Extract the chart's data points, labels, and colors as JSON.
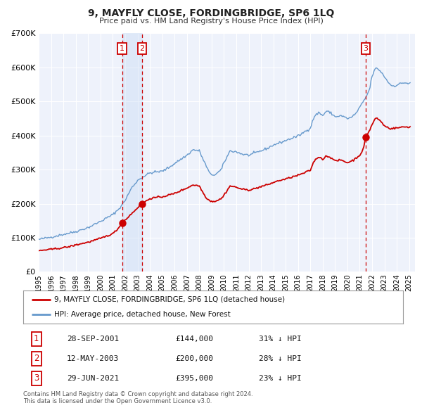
{
  "title": "9, MAYFLY CLOSE, FORDINGBRIDGE, SP6 1LQ",
  "subtitle": "Price paid vs. HM Land Registry's House Price Index (HPI)",
  "background_color": "#ffffff",
  "plot_background_color": "#eef2fb",
  "grid_color": "#ffffff",
  "ylim": [
    0,
    700000
  ],
  "yticks": [
    0,
    100000,
    200000,
    300000,
    400000,
    500000,
    600000,
    700000
  ],
  "ytick_labels": [
    "£0",
    "£100K",
    "£200K",
    "£300K",
    "£400K",
    "£500K",
    "£600K",
    "£700K"
  ],
  "sale_dates": [
    2001.747,
    2003.36,
    2021.494
  ],
  "sale_prices": [
    144000,
    200000,
    395000
  ],
  "sale_labels": [
    "1",
    "2",
    "3"
  ],
  "sale_marker_color": "#cc0000",
  "sale_line_color": "#cc0000",
  "hpi_line_color": "#6699cc",
  "hpi_shade_color": "#ccddf5",
  "vline_color": "#cc0000",
  "vline_style": "--",
  "shade_between_dates": [
    2001.747,
    2003.36
  ],
  "legend_entries": [
    "9, MAYFLY CLOSE, FORDINGBRIDGE, SP6 1LQ (detached house)",
    "HPI: Average price, detached house, New Forest"
  ],
  "table_data": [
    [
      "1",
      "28-SEP-2001",
      "£144,000",
      "31% ↓ HPI"
    ],
    [
      "2",
      "12-MAY-2003",
      "£200,000",
      "28% ↓ HPI"
    ],
    [
      "3",
      "29-JUN-2021",
      "£395,000",
      "23% ↓ HPI"
    ]
  ],
  "footnote": "Contains HM Land Registry data © Crown copyright and database right 2024.\nThis data is licensed under the Open Government Licence v3.0.",
  "xmin": 1995,
  "xmax": 2025.5,
  "xtick_years": [
    1995,
    1996,
    1997,
    1998,
    1999,
    2000,
    2001,
    2002,
    2003,
    2004,
    2005,
    2006,
    2007,
    2008,
    2009,
    2010,
    2011,
    2012,
    2013,
    2014,
    2015,
    2016,
    2017,
    2018,
    2019,
    2020,
    2021,
    2022,
    2023,
    2024,
    2025
  ]
}
